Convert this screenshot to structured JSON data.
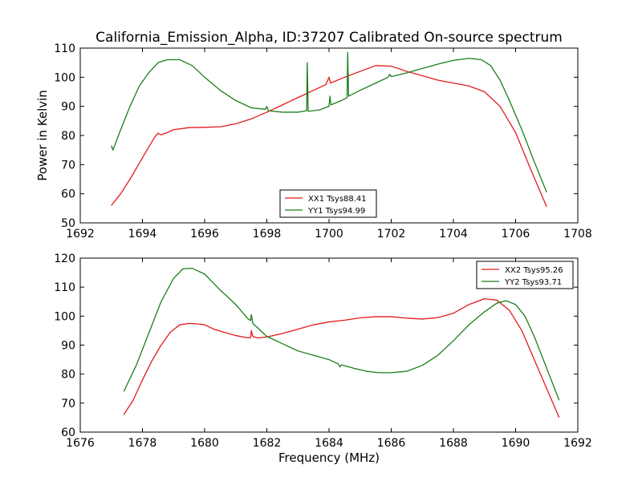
{
  "chart_data": [
    {
      "type": "line",
      "title": "California_Emission_Alpha, ID:37207 Calibrated On-source spectrum",
      "xlabel": "",
      "ylabel": "Power in Kelvin",
      "xlim": [
        1692,
        1708
      ],
      "ylim": [
        50,
        110
      ],
      "xticks": [
        1692,
        1694,
        1696,
        1698,
        1700,
        1702,
        1704,
        1706,
        1708
      ],
      "yticks": [
        50,
        60,
        70,
        80,
        90,
        100,
        110
      ],
      "legend_position": "lower-center",
      "series": [
        {
          "name": "XX1 Tsys88.41",
          "color": "#e41a1c",
          "points": [
            [
              1693.0,
              56.0
            ],
            [
              1693.3,
              60.0
            ],
            [
              1693.6,
              65.0
            ],
            [
              1693.9,
              70.5
            ],
            [
              1694.2,
              76.0
            ],
            [
              1694.4,
              79.5
            ],
            [
              1694.5,
              80.8
            ],
            [
              1694.6,
              80.2
            ],
            [
              1694.8,
              81.0
            ],
            [
              1695.0,
              82.0
            ],
            [
              1695.5,
              82.7
            ],
            [
              1696.0,
              82.8
            ],
            [
              1696.5,
              83.0
            ],
            [
              1697.0,
              84.0
            ],
            [
              1697.5,
              85.7
            ],
            [
              1698.0,
              88.0
            ],
            [
              1698.5,
              90.5
            ],
            [
              1699.0,
              93.0
            ],
            [
              1699.5,
              95.5
            ],
            [
              1699.9,
              97.5
            ],
            [
              1700.0,
              100.0
            ],
            [
              1700.05,
              98.0
            ],
            [
              1700.5,
              100.0
            ],
            [
              1701.0,
              102.0
            ],
            [
              1701.5,
              104.0
            ],
            [
              1702.0,
              103.8
            ],
            [
              1702.5,
              102.0
            ],
            [
              1703.0,
              100.5
            ],
            [
              1703.5,
              99.0
            ],
            [
              1704.0,
              98.0
            ],
            [
              1704.5,
              97.0
            ],
            [
              1705.0,
              95.0
            ],
            [
              1705.5,
              90.0
            ],
            [
              1706.0,
              81.0
            ],
            [
              1706.5,
              68.0
            ],
            [
              1707.0,
              55.5
            ]
          ]
        },
        {
          "name": "YY1 Tsys94.99",
          "color": "#1a7f1a",
          "points": [
            [
              1693.0,
              76.5
            ],
            [
              1693.05,
              75.0
            ],
            [
              1693.3,
              82.0
            ],
            [
              1693.6,
              90.0
            ],
            [
              1693.9,
              97.0
            ],
            [
              1694.2,
              101.5
            ],
            [
              1694.5,
              105.0
            ],
            [
              1694.8,
              106.0
            ],
            [
              1695.2,
              106.0
            ],
            [
              1695.6,
              104.0
            ],
            [
              1696.0,
              100.0
            ],
            [
              1696.5,
              95.5
            ],
            [
              1697.0,
              92.0
            ],
            [
              1697.5,
              89.5
            ],
            [
              1697.95,
              89.0
            ],
            [
              1698.0,
              90.0
            ],
            [
              1698.05,
              88.5
            ],
            [
              1698.5,
              88.0
            ],
            [
              1699.0,
              88.0
            ],
            [
              1699.28,
              88.5
            ],
            [
              1699.3,
              105.0
            ],
            [
              1699.33,
              88.3
            ],
            [
              1699.7,
              88.8
            ],
            [
              1700.0,
              90.0
            ],
            [
              1700.03,
              93.5
            ],
            [
              1700.06,
              90.5
            ],
            [
              1700.4,
              92.0
            ],
            [
              1700.58,
              93.0
            ],
            [
              1700.6,
              108.5
            ],
            [
              1700.63,
              93.5
            ],
            [
              1701.0,
              95.5
            ],
            [
              1701.5,
              98.0
            ],
            [
              1701.9,
              100.0
            ],
            [
              1701.95,
              101.0
            ],
            [
              1702.0,
              100.2
            ],
            [
              1702.5,
              101.5
            ],
            [
              1703.0,
              103.0
            ],
            [
              1703.5,
              104.5
            ],
            [
              1704.0,
              105.8
            ],
            [
              1704.5,
              106.5
            ],
            [
              1704.9,
              106.0
            ],
            [
              1705.2,
              104.0
            ],
            [
              1705.5,
              99.0
            ],
            [
              1705.8,
              92.0
            ],
            [
              1706.2,
              82.0
            ],
            [
              1706.6,
              71.0
            ],
            [
              1707.0,
              60.5
            ]
          ]
        }
      ]
    },
    {
      "type": "line",
      "title": "",
      "xlabel": "Frequency (MHz)",
      "ylabel": "",
      "xlim": [
        1676,
        1692
      ],
      "ylim": [
        60,
        120
      ],
      "xticks": [
        1676,
        1678,
        1680,
        1682,
        1684,
        1686,
        1688,
        1690,
        1692
      ],
      "yticks": [
        60,
        70,
        80,
        90,
        100,
        110,
        120
      ],
      "legend_position": "upper-right",
      "series": [
        {
          "name": "XX2 Tsys95.26",
          "color": "#e41a1c",
          "points": [
            [
              1677.4,
              66.0
            ],
            [
              1677.7,
              71.0
            ],
            [
              1678.0,
              78.0
            ],
            [
              1678.3,
              84.5
            ],
            [
              1678.6,
              90.0
            ],
            [
              1678.9,
              94.5
            ],
            [
              1679.2,
              97.0
            ],
            [
              1679.5,
              97.5
            ],
            [
              1679.8,
              97.3
            ],
            [
              1680.0,
              97.0
            ],
            [
              1680.3,
              95.5
            ],
            [
              1680.6,
              94.5
            ],
            [
              1681.0,
              93.3
            ],
            [
              1681.4,
              92.5
            ],
            [
              1681.48,
              92.6
            ],
            [
              1681.5,
              95.0
            ],
            [
              1681.55,
              93.0
            ],
            [
              1681.7,
              92.5
            ],
            [
              1682.0,
              92.8
            ],
            [
              1682.5,
              94.0
            ],
            [
              1683.0,
              95.5
            ],
            [
              1683.5,
              97.0
            ],
            [
              1684.0,
              98.0
            ],
            [
              1684.5,
              98.6
            ],
            [
              1685.0,
              99.4
            ],
            [
              1685.5,
              99.8
            ],
            [
              1686.0,
              99.8
            ],
            [
              1686.5,
              99.3
            ],
            [
              1687.0,
              99.0
            ],
            [
              1687.5,
              99.5
            ],
            [
              1688.0,
              101.0
            ],
            [
              1688.5,
              104.0
            ],
            [
              1689.0,
              106.0
            ],
            [
              1689.4,
              105.5
            ],
            [
              1689.8,
              102.0
            ],
            [
              1690.2,
              95.0
            ],
            [
              1690.6,
              85.0
            ],
            [
              1691.0,
              75.0
            ],
            [
              1691.4,
              65.0
            ]
          ]
        },
        {
          "name": "YY2 Tsys93.71",
          "color": "#1a7f1a",
          "points": [
            [
              1677.4,
              74.0
            ],
            [
              1677.8,
              83.0
            ],
            [
              1678.2,
              94.0
            ],
            [
              1678.6,
              105.0
            ],
            [
              1679.0,
              113.0
            ],
            [
              1679.3,
              116.3
            ],
            [
              1679.6,
              116.5
            ],
            [
              1680.0,
              114.5
            ],
            [
              1680.5,
              109.0
            ],
            [
              1681.0,
              104.0
            ],
            [
              1681.4,
              99.0
            ],
            [
              1681.48,
              98.5
            ],
            [
              1681.5,
              100.5
            ],
            [
              1681.55,
              97.5
            ],
            [
              1682.0,
              93.0
            ],
            [
              1682.5,
              90.5
            ],
            [
              1683.0,
              88.0
            ],
            [
              1683.5,
              86.5
            ],
            [
              1684.0,
              85.0
            ],
            [
              1684.3,
              83.5
            ],
            [
              1684.35,
              82.5
            ],
            [
              1684.4,
              83.2
            ],
            [
              1684.8,
              82.0
            ],
            [
              1685.2,
              81.0
            ],
            [
              1685.6,
              80.5
            ],
            [
              1686.0,
              80.5
            ],
            [
              1686.5,
              81.0
            ],
            [
              1687.0,
              83.0
            ],
            [
              1687.5,
              86.5
            ],
            [
              1688.0,
              91.5
            ],
            [
              1688.5,
              97.0
            ],
            [
              1689.0,
              101.5
            ],
            [
              1689.4,
              104.5
            ],
            [
              1689.7,
              105.3
            ],
            [
              1690.0,
              104.0
            ],
            [
              1690.3,
              100.0
            ],
            [
              1690.6,
              93.0
            ],
            [
              1691.0,
              82.0
            ],
            [
              1691.4,
              71.0
            ]
          ]
        }
      ]
    }
  ]
}
